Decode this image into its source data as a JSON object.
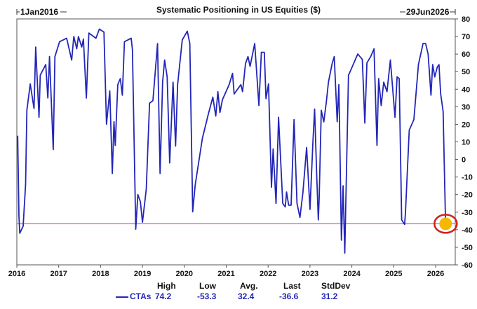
{
  "chart_data": {
    "type": "line",
    "title": "Systematic Positioning in US Equities ($)",
    "start_label": "1Jan2016",
    "end_label": "29Jun2026",
    "xlim": [
      2016,
      2026.49
    ],
    "ylim": [
      -60,
      80
    ],
    "x_ticks": [
      "2016",
      "2017",
      "2018",
      "2019",
      "2020",
      "2021",
      "2022",
      "2023",
      "2024",
      "2025",
      "2026"
    ],
    "y_ticks": [
      80,
      70,
      60,
      50,
      40,
      30,
      20,
      10,
      0,
      -10,
      -20,
      -30,
      -40,
      -50,
      -60
    ],
    "y_axis_side": "right",
    "grid": false,
    "series": [
      {
        "name": "CTAs",
        "color": "#2326b8",
        "points": [
          [
            2016.02,
            13.5
          ],
          [
            2016.05,
            -32
          ],
          [
            2016.07,
            -42
          ],
          [
            2016.15,
            -38
          ],
          [
            2016.21,
            -14
          ],
          [
            2016.24,
            28
          ],
          [
            2016.32,
            43
          ],
          [
            2016.41,
            29
          ],
          [
            2016.45,
            64
          ],
          [
            2016.53,
            24
          ],
          [
            2016.56,
            48
          ],
          [
            2016.69,
            54
          ],
          [
            2016.74,
            35
          ],
          [
            2016.78,
            58.6
          ],
          [
            2016.87,
            5.6
          ],
          [
            2016.91,
            58.6
          ],
          [
            2017.02,
            67
          ],
          [
            2017.19,
            69
          ],
          [
            2017.31,
            56.6
          ],
          [
            2017.36,
            70
          ],
          [
            2017.43,
            63
          ],
          [
            2017.47,
            70
          ],
          [
            2017.55,
            64
          ],
          [
            2017.59,
            68.5
          ],
          [
            2017.66,
            35
          ],
          [
            2017.72,
            72
          ],
          [
            2017.89,
            69
          ],
          [
            2017.97,
            74.2
          ],
          [
            2018.08,
            72.5
          ],
          [
            2018.14,
            20
          ],
          [
            2018.22,
            39
          ],
          [
            2018.28,
            -8
          ],
          [
            2018.32,
            21.5
          ],
          [
            2018.35,
            8
          ],
          [
            2018.41,
            42.6
          ],
          [
            2018.47,
            46
          ],
          [
            2018.52,
            36.6
          ],
          [
            2018.57,
            67
          ],
          [
            2018.73,
            69
          ],
          [
            2018.76,
            62.5
          ],
          [
            2018.84,
            -39.7
          ],
          [
            2018.89,
            -20
          ],
          [
            2018.95,
            -24
          ],
          [
            2019.0,
            -35.7
          ],
          [
            2019.09,
            -17
          ],
          [
            2019.17,
            32
          ],
          [
            2019.25,
            33.5
          ],
          [
            2019.36,
            66
          ],
          [
            2019.42,
            -8
          ],
          [
            2019.48,
            44
          ],
          [
            2019.53,
            56.6
          ],
          [
            2019.59,
            47
          ],
          [
            2019.65,
            -2
          ],
          [
            2019.73,
            44
          ],
          [
            2019.79,
            7.6
          ],
          [
            2019.84,
            42.6
          ],
          [
            2019.95,
            68
          ],
          [
            2020.07,
            73
          ],
          [
            2020.13,
            66
          ],
          [
            2020.2,
            -29.8
          ],
          [
            2020.26,
            -14.4
          ],
          [
            2020.43,
            12
          ],
          [
            2020.57,
            25.5
          ],
          [
            2020.68,
            35.5
          ],
          [
            2020.75,
            24.7
          ],
          [
            2020.8,
            38.6
          ],
          [
            2020.85,
            26.7
          ],
          [
            2020.91,
            34
          ],
          [
            2021.07,
            42.6
          ],
          [
            2021.15,
            49
          ],
          [
            2021.19,
            37.3
          ],
          [
            2021.35,
            42.6
          ],
          [
            2021.39,
            38.6
          ],
          [
            2021.46,
            54.6
          ],
          [
            2021.52,
            58.6
          ],
          [
            2021.57,
            53
          ],
          [
            2021.68,
            66
          ],
          [
            2021.78,
            30.7
          ],
          [
            2021.84,
            61
          ],
          [
            2021.91,
            61
          ],
          [
            2021.95,
            34.6
          ],
          [
            2022.01,
            43
          ],
          [
            2022.08,
            -15.8
          ],
          [
            2022.12,
            6
          ],
          [
            2022.19,
            -25
          ],
          [
            2022.25,
            24
          ],
          [
            2022.35,
            -25
          ],
          [
            2022.41,
            -27
          ],
          [
            2022.44,
            -18.5
          ],
          [
            2022.49,
            -26
          ],
          [
            2022.55,
            -26
          ],
          [
            2022.62,
            22.7
          ],
          [
            2022.69,
            -25
          ],
          [
            2022.76,
            -33
          ],
          [
            2022.83,
            -19
          ],
          [
            2022.92,
            6.8
          ],
          [
            2023.0,
            -28.4
          ],
          [
            2023.07,
            10
          ],
          [
            2023.11,
            28.7
          ],
          [
            2023.16,
            -9
          ],
          [
            2023.2,
            -34.4
          ],
          [
            2023.22,
            -22
          ],
          [
            2023.27,
            28
          ],
          [
            2023.33,
            21.4
          ],
          [
            2023.39,
            32.7
          ],
          [
            2023.44,
            44
          ],
          [
            2023.53,
            54.6
          ],
          [
            2023.58,
            58.6
          ],
          [
            2023.65,
            21.5
          ],
          [
            2023.69,
            42.6
          ],
          [
            2023.75,
            -46
          ],
          [
            2023.79,
            -15
          ],
          [
            2023.83,
            -53.3
          ],
          [
            2023.92,
            48
          ],
          [
            2023.97,
            50.6
          ],
          [
            2024.14,
            60
          ],
          [
            2024.25,
            57
          ],
          [
            2024.31,
            20.7
          ],
          [
            2024.36,
            55
          ],
          [
            2024.45,
            58.6
          ],
          [
            2024.53,
            63
          ],
          [
            2024.6,
            8
          ],
          [
            2024.64,
            46
          ],
          [
            2024.7,
            30.7
          ],
          [
            2024.76,
            44
          ],
          [
            2024.84,
            38.6
          ],
          [
            2024.92,
            56.6
          ],
          [
            2025.03,
            24
          ],
          [
            2025.08,
            47
          ],
          [
            2025.13,
            46
          ],
          [
            2025.19,
            -34.4
          ],
          [
            2025.26,
            -37
          ],
          [
            2025.28,
            -30.4
          ],
          [
            2025.37,
            16.7
          ],
          [
            2025.48,
            22.7
          ],
          [
            2025.59,
            54
          ],
          [
            2025.7,
            66
          ],
          [
            2025.76,
            66
          ],
          [
            2025.82,
            60
          ],
          [
            2025.89,
            36.6
          ],
          [
            2025.93,
            54
          ],
          [
            2025.98,
            47
          ],
          [
            2026.04,
            52.6
          ],
          [
            2026.08,
            54
          ],
          [
            2026.12,
            37.3
          ],
          [
            2026.18,
            27.4
          ],
          [
            2026.23,
            -27.8
          ],
          [
            2026.24,
            -36.6
          ]
        ]
      }
    ],
    "reference_line": {
      "value": -36.6,
      "color": "#d9534f"
    },
    "highlight_marker": {
      "x": 2026.24,
      "y": -36.6,
      "fill": "#f5b800",
      "ring": "#cc2222"
    },
    "legend": {
      "headers": [
        "High",
        "Low",
        "Avg.",
        "Last",
        "StdDev"
      ],
      "series_label": "CTAs",
      "values": [
        "74.2",
        "-53.3",
        "32.4",
        "-36.6",
        "31.2"
      ]
    }
  }
}
